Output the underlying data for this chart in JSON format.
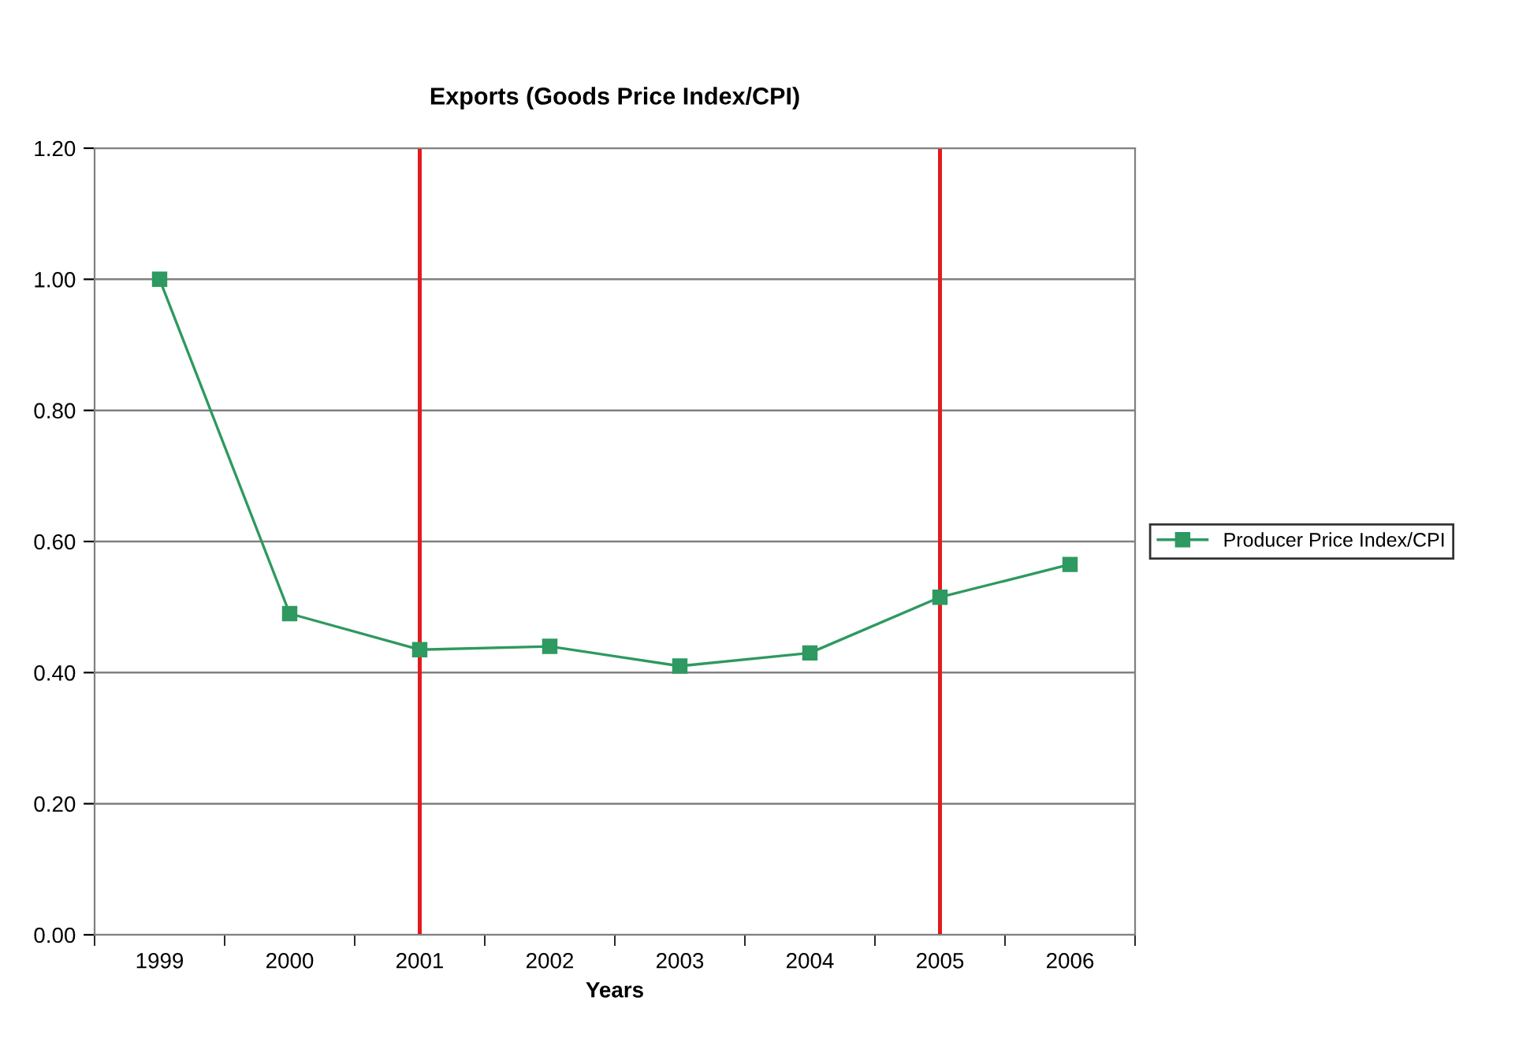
{
  "chart_data": {
    "type": "line",
    "title": "Exports (Goods Price Index/CPI)",
    "xlabel": "Years",
    "categories": [
      "1999",
      "2000",
      "2001",
      "2002",
      "2003",
      "2004",
      "2005",
      "2006"
    ],
    "series": [
      {
        "name": "Producer Price Index/CPI",
        "color": "#2e9960",
        "values": [
          1.0,
          0.49,
          0.435,
          0.44,
          0.41,
          0.43,
          0.515,
          0.565
        ]
      }
    ],
    "ylim": [
      0,
      1.2
    ],
    "yticks": [
      {
        "value": 0,
        "label": "0.00"
      },
      {
        "value": 0.2,
        "label": "0.20"
      },
      {
        "value": 0.4,
        "label": "0.40"
      },
      {
        "value": 0.6,
        "label": "0.60"
      },
      {
        "value": 0.8,
        "label": "0.80"
      },
      {
        "value": 1.0,
        "label": "1.00"
      },
      {
        "value": 1.2,
        "label": "1.20"
      }
    ],
    "ref_lines": [
      {
        "axis": "x",
        "value": "2001",
        "color": "#e41a1c"
      },
      {
        "axis": "x",
        "value": "2005",
        "color": "#e41a1c"
      }
    ],
    "grid": "y",
    "legend": "right",
    "marker": "square",
    "line_style": "solid"
  }
}
